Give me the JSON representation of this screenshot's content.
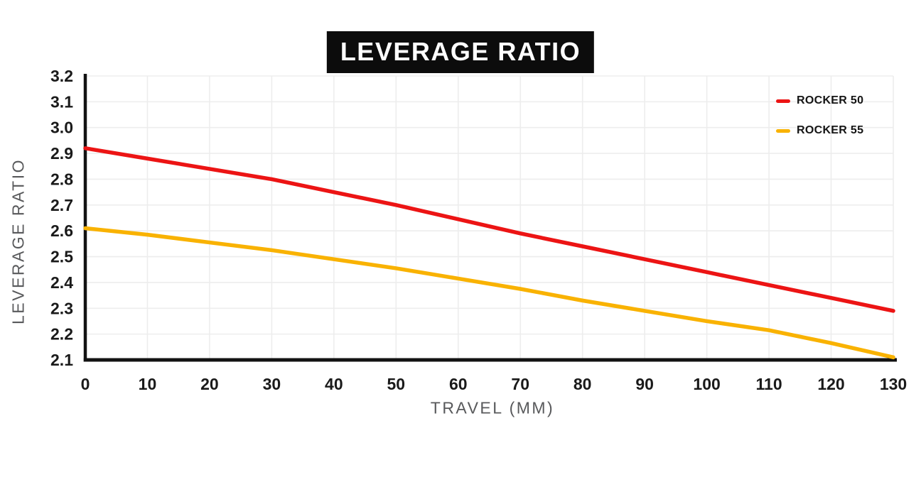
{
  "colors": {
    "background": "#ffffff",
    "grid": "#ededed",
    "axis": "#121212",
    "tick_text": "#1a1a1a",
    "axis_title_text": "#58595b",
    "title_bg": "#0c0c0c",
    "title_text": "#ffffff",
    "rocker50": "#ec1414",
    "rocker55": "#f9b200"
  },
  "chart_data": {
    "type": "line",
    "title": "LEVERAGE RATIO",
    "xlabel": "TRAVEL (MM)",
    "ylabel": "LEVERAGE RATIO",
    "x": [
      0,
      10,
      20,
      30,
      40,
      50,
      60,
      70,
      80,
      90,
      100,
      110,
      120,
      130
    ],
    "xlim": [
      0,
      130
    ],
    "ylim": [
      2.1,
      3.2
    ],
    "x_ticks": [
      "0",
      "10",
      "20",
      "30",
      "40",
      "50",
      "60",
      "70",
      "80",
      "90",
      "100",
      "110",
      "120",
      "130"
    ],
    "y_ticks": [
      "3.2",
      "3.1",
      "3.0",
      "2.9",
      "2.8",
      "2.7",
      "2.6",
      "2.5",
      "2.4",
      "2.3",
      "2.2",
      "2.1"
    ],
    "grid": true,
    "legend_position": "top-right",
    "series": [
      {
        "name": "ROCKER 50",
        "color": "#ec1414",
        "values": [
          2.92,
          2.88,
          2.84,
          2.8,
          2.75,
          2.7,
          2.645,
          2.59,
          2.54,
          2.49,
          2.44,
          2.39,
          2.34,
          2.29
        ]
      },
      {
        "name": "ROCKER 55",
        "color": "#f9b200",
        "values": [
          2.61,
          2.585,
          2.555,
          2.525,
          2.49,
          2.455,
          2.415,
          2.375,
          2.33,
          2.29,
          2.25,
          2.215,
          2.165,
          2.11
        ]
      }
    ]
  }
}
